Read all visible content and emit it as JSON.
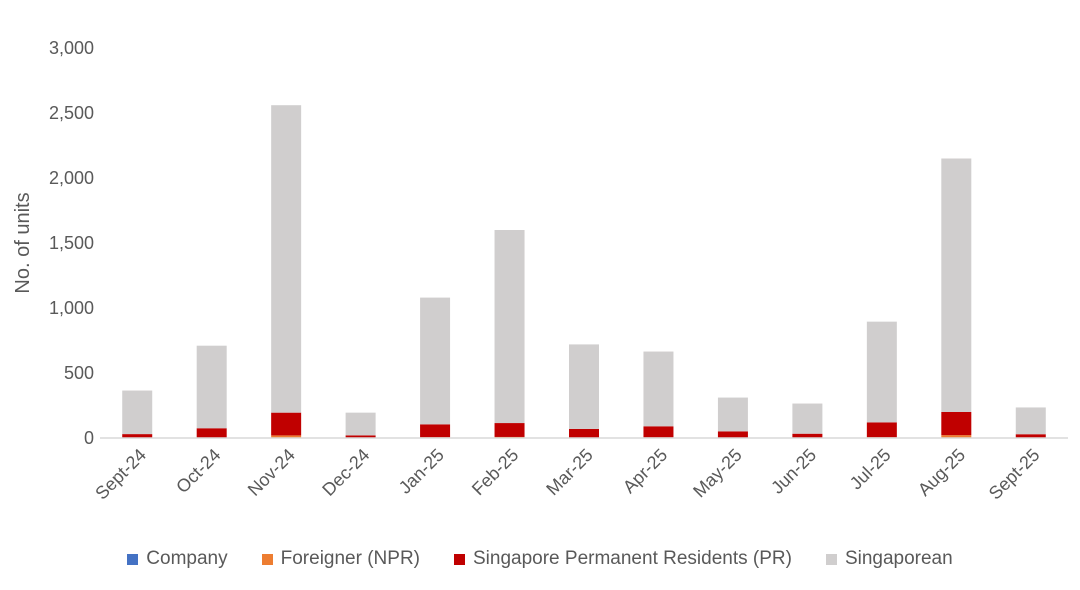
{
  "chart_data": {
    "type": "bar",
    "stacked": true,
    "title": "",
    "xlabel": "",
    "ylabel": "No. of units",
    "ylim": [
      0,
      3000
    ],
    "yticks": [
      0,
      500,
      1000,
      1500,
      2000,
      2500,
      3000
    ],
    "ytick_labels": [
      "0",
      "500",
      "1,000",
      "1,500",
      "2,000",
      "2,500",
      "3,000"
    ],
    "grid": false,
    "legend_position": "bottom",
    "categories": [
      "Sept-24",
      "Oct-24",
      "Nov-24",
      "Dec-24",
      "Jan-25",
      "Feb-25",
      "Mar-25",
      "Apr-25",
      "May-25",
      "Jun-25",
      "Jul-25",
      "Aug-25",
      "Sept-25"
    ],
    "series": [
      {
        "name": "Company",
        "color": "#4472C4",
        "values": [
          0,
          0,
          0,
          0,
          0,
          0,
          0,
          0,
          0,
          0,
          0,
          0,
          0
        ]
      },
      {
        "name": "Foreigner (NPR)",
        "color": "#ED7D31",
        "values": [
          3,
          4,
          20,
          2,
          6,
          8,
          4,
          5,
          3,
          2,
          6,
          22,
          3
        ]
      },
      {
        "name": "Singapore Permanent Residents (PR)",
        "color": "#C00000",
        "values": [
          27,
          71,
          175,
          18,
          99,
          107,
          66,
          85,
          48,
          31,
          114,
          178,
          26
        ]
      },
      {
        "name": "Singaporean",
        "color": "#D0CECE",
        "values": [
          335,
          635,
          2365,
          175,
          975,
          1485,
          650,
          575,
          260,
          232,
          775,
          1950,
          206
        ]
      }
    ]
  }
}
